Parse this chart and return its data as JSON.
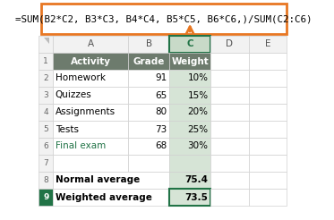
{
  "formula": "=SUM(B2*C2, B3*C3, B4*C4, B5*C5, B6*C6,)/SUM(C2:C6)",
  "formula_box_color": "#E87722",
  "col_headers": [
    "A",
    "B",
    "C",
    "D",
    "E"
  ],
  "header_row": [
    "Activity",
    "Grade",
    "Weight"
  ],
  "header_bg": "#6D7B6D",
  "header_text_color": "#FFFFFF",
  "data_rows": [
    [
      "Homework",
      "91",
      "10%"
    ],
    [
      "Quizzes",
      "65",
      "15%"
    ],
    [
      "Assignments",
      "80",
      "20%"
    ],
    [
      "Tests",
      "73",
      "25%"
    ],
    [
      "Final exam",
      "68",
      "30%"
    ]
  ],
  "data_text_colors": [
    [
      "#000000",
      "#000000",
      "#000000"
    ],
    [
      "#000000",
      "#000000",
      "#000000"
    ],
    [
      "#000000",
      "#000000",
      "#000000"
    ],
    [
      "#000000",
      "#000000",
      "#000000"
    ],
    [
      "#217346",
      "#000000",
      "#000000"
    ]
  ],
  "summary_rows": [
    {
      "label": "Normal average",
      "value": "75.4",
      "highlight": false
    },
    {
      "label": "Weighted average",
      "value": "73.5",
      "highlight": true
    }
  ],
  "selected_col_idx": 2,
  "selected_col_bg": "#D6E4D6",
  "selected_col_header_bg": "#C8DAC8",
  "selected_col_border": "#217346",
  "grid_color": "#D0D0D0",
  "arrow_color": "#E87722",
  "row9_num_bg": "#217346",
  "row9_num_color": "#FFFFFF",
  "highlight_border_color": "#217346",
  "bg_color": "#FFFFFF"
}
